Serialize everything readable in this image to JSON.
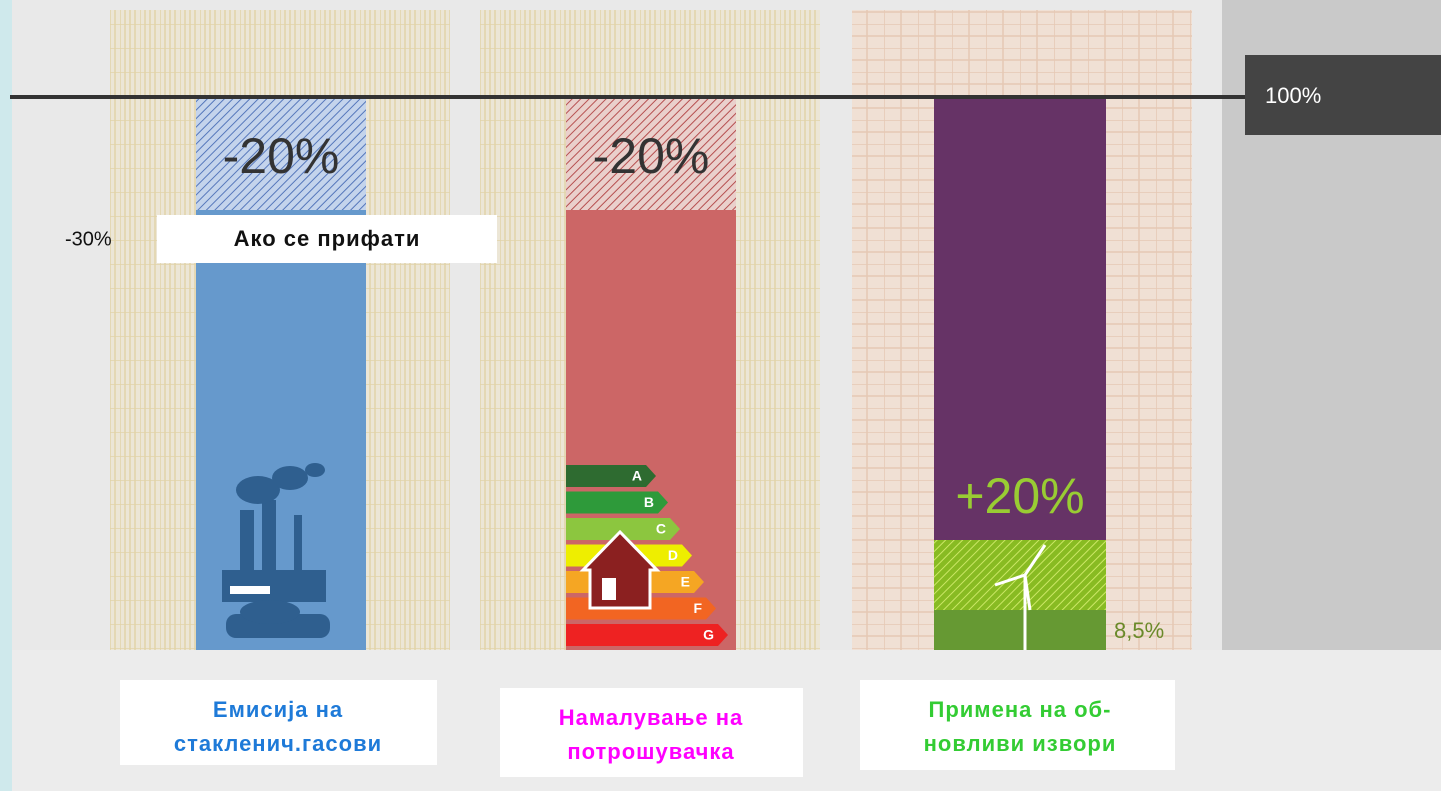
{
  "reference": {
    "label": "100%"
  },
  "columns": [
    {
      "top_label": "-20%",
      "side_label": "-30%",
      "note": "Ако се прифати",
      "caption": [
        "Емисија на",
        "стакленич.гасови"
      ]
    },
    {
      "top_label": "-20%",
      "energy_classes": [
        "A",
        "B",
        "C",
        "D",
        "E",
        "F",
        "G"
      ],
      "caption": [
        "Намалување на",
        "потрошувачка"
      ]
    },
    {
      "top_label": "+20%",
      "base_label": "8,5%",
      "caption": [
        "Примена на об-",
        "новливи извори"
      ]
    }
  ]
}
